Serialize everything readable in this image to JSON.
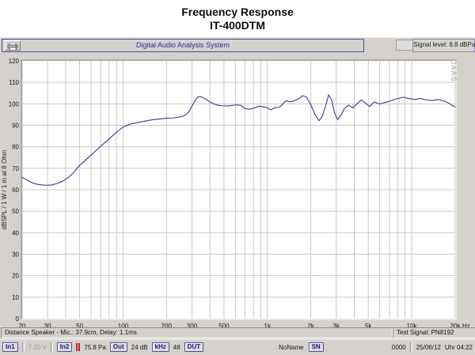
{
  "title": {
    "line1": "Frequency Response",
    "line2": "IT-400DTM"
  },
  "toolbar": {
    "app_title": "Digital Audio Analysis System",
    "print_icon": "printer-icon",
    "signal_level": "Signal level:  8.8 dBPa"
  },
  "chart_data": {
    "type": "line",
    "title": "Frequency Response IT-400DTM",
    "xlabel": "Hz",
    "ylabel": "dBSPL / 1 W / 1 m at 8 Ohm",
    "x_scale": "log",
    "xlim": [
      20,
      20000
    ],
    "ylim": [
      0,
      120
    ],
    "grid": true,
    "watermark": "DAAS",
    "x_unit": "Hz",
    "grid_x": [
      20,
      30,
      40,
      50,
      60,
      70,
      80,
      90,
      100,
      200,
      300,
      400,
      500,
      600,
      700,
      800,
      900,
      1000,
      2000,
      3000,
      4000,
      5000,
      6000,
      7000,
      8000,
      9000,
      10000,
      20000
    ],
    "x_ticks": [
      {
        "f": 20,
        "label": "20"
      },
      {
        "f": 30,
        "label": "30"
      },
      {
        "f": 50,
        "label": "50"
      },
      {
        "f": 100,
        "label": "100"
      },
      {
        "f": 200,
        "label": "200"
      },
      {
        "f": 300,
        "label": "300"
      },
      {
        "f": 500,
        "label": "500"
      },
      {
        "f": 1000,
        "label": "1k"
      },
      {
        "f": 2000,
        "label": "2k"
      },
      {
        "f": 3000,
        "label": "3k"
      },
      {
        "f": 5000,
        "label": "5k"
      },
      {
        "f": 10000,
        "label": "10k"
      },
      {
        "f": 20000,
        "label": "20k"
      }
    ],
    "y_ticks": [
      0,
      10,
      20,
      30,
      40,
      50,
      60,
      70,
      80,
      90,
      100,
      110,
      120
    ],
    "series": [
      {
        "name": "frequency-response",
        "color": "#4a4a94",
        "points": [
          [
            20,
            65.8
          ],
          [
            22,
            64.2
          ],
          [
            24,
            63.0
          ],
          [
            26,
            62.4
          ],
          [
            29,
            62.1
          ],
          [
            32,
            62.2
          ],
          [
            35,
            62.9
          ],
          [
            39,
            64.3
          ],
          [
            44,
            67.0
          ],
          [
            50,
            71.3
          ],
          [
            55,
            73.8
          ],
          [
            62,
            77.0
          ],
          [
            70,
            80.3
          ],
          [
            78,
            83.0
          ],
          [
            88,
            86.2
          ],
          [
            100,
            89.2
          ],
          [
            112,
            90.5
          ],
          [
            126,
            91.3
          ],
          [
            142,
            92.0
          ],
          [
            160,
            92.6
          ],
          [
            180,
            93.0
          ],
          [
            200,
            93.3
          ],
          [
            220,
            93.4
          ],
          [
            245,
            93.8
          ],
          [
            268,
            94.6
          ],
          [
            285,
            96.3
          ],
          [
            300,
            98.8
          ],
          [
            315,
            101.5
          ],
          [
            330,
            103.2
          ],
          [
            345,
            103.4
          ],
          [
            365,
            102.6
          ],
          [
            390,
            101.3
          ],
          [
            420,
            100.1
          ],
          [
            455,
            99.4
          ],
          [
            490,
            99.1
          ],
          [
            530,
            99.0
          ],
          [
            575,
            99.3
          ],
          [
            620,
            99.5
          ],
          [
            660,
            99.2
          ],
          [
            700,
            97.8
          ],
          [
            760,
            97.5
          ],
          [
            830,
            98.3
          ],
          [
            880,
            98.9
          ],
          [
            930,
            98.7
          ],
          [
            990,
            98.2
          ],
          [
            1050,
            97.2
          ],
          [
            1130,
            98.2
          ],
          [
            1210,
            98.4
          ],
          [
            1280,
            100.0
          ],
          [
            1350,
            101.5
          ],
          [
            1430,
            100.9
          ],
          [
            1520,
            101.3
          ],
          [
            1640,
            102.3
          ],
          [
            1760,
            103.8
          ],
          [
            1870,
            103.1
          ],
          [
            2000,
            99.5
          ],
          [
            2130,
            95.2
          ],
          [
            2280,
            92.1
          ],
          [
            2400,
            94.2
          ],
          [
            2530,
            99.0
          ],
          [
            2650,
            104.2
          ],
          [
            2780,
            102.0
          ],
          [
            2920,
            95.8
          ],
          [
            3070,
            92.6
          ],
          [
            3230,
            94.8
          ],
          [
            3420,
            97.8
          ],
          [
            3650,
            99.4
          ],
          [
            3900,
            98.1
          ],
          [
            4150,
            99.8
          ],
          [
            4450,
            101.8
          ],
          [
            4750,
            100.5
          ],
          [
            5100,
            98.8
          ],
          [
            5500,
            100.9
          ],
          [
            5950,
            99.9
          ],
          [
            6400,
            100.4
          ],
          [
            7100,
            101.3
          ],
          [
            7900,
            102.4
          ],
          [
            8700,
            103.1
          ],
          [
            9500,
            102.5
          ],
          [
            10500,
            102.0
          ],
          [
            11500,
            102.5
          ],
          [
            12500,
            101.9
          ],
          [
            13800,
            101.5
          ],
          [
            15200,
            102.0
          ],
          [
            16800,
            101.3
          ],
          [
            18000,
            100.4
          ],
          [
            19000,
            99.3
          ],
          [
            20000,
            98.5
          ]
        ]
      }
    ]
  },
  "status_top": {
    "left": "Distance Speaker - Mic.: 37.9cm, Delay: 1.1ms",
    "right": "Test Signal: PN8192"
  },
  "status_bottom": {
    "in1_button": "In1",
    "in1_value": "7.20 V",
    "in2_button": "In2",
    "clip_indicator": "clip-indicator",
    "in2_value": "75.8 Pa",
    "out_button": "Out",
    "out_value": "24 dB",
    "khz_button": "kHz",
    "khz_value": "48",
    "dut_button": "DUT",
    "file_name": "NoName",
    "sn_button": "SN",
    "counter": "0000",
    "date": "25/06/12",
    "time": "Uhr 04:22"
  },
  "colors": {
    "panel_bg": "#d5d2cd",
    "plot_bg": "#ffffff",
    "grid": "#c8c8c8",
    "curve": "#4a4a94",
    "navy": "#2a2a9a",
    "watermark": "#a8a8a8"
  }
}
